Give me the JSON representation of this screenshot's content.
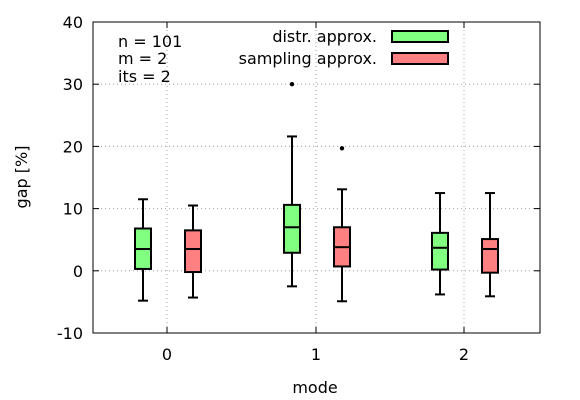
{
  "chart_data": {
    "type": "boxplot",
    "xlabel": "mode",
    "ylabel": "gap [%]",
    "ylim": [
      -10,
      40
    ],
    "yticks": [
      "-10",
      "0",
      "10",
      "20",
      "30",
      "40"
    ],
    "categories": [
      "0",
      "1",
      "2"
    ],
    "grid": true,
    "legend_position": "top-right",
    "annotations": [
      "n = 101",
      "m = 2",
      "its = 2"
    ],
    "series": [
      {
        "name": "distr. approx.",
        "color": "#80ff80",
        "boxes": [
          {
            "category": "0",
            "whisker_low": -4.8,
            "q1": 0.3,
            "median": 3.5,
            "q3": 6.8,
            "whisker_high": 11.5,
            "outliers": []
          },
          {
            "category": "1",
            "whisker_low": -2.5,
            "q1": 2.9,
            "median": 7.0,
            "q3": 10.6,
            "whisker_high": 21.6,
            "outliers": [
              30.0
            ]
          },
          {
            "category": "2",
            "whisker_low": -3.8,
            "q1": 0.2,
            "median": 3.7,
            "q3": 6.1,
            "whisker_high": 12.5,
            "outliers": []
          }
        ]
      },
      {
        "name": "sampling approx.",
        "color": "#ff8080",
        "boxes": [
          {
            "category": "0",
            "whisker_low": -4.3,
            "q1": -0.2,
            "median": 3.5,
            "q3": 6.5,
            "whisker_high": 10.5,
            "outliers": []
          },
          {
            "category": "1",
            "whisker_low": -4.9,
            "q1": 0.7,
            "median": 3.8,
            "q3": 7.0,
            "whisker_high": 13.1,
            "outliers": [
              19.7
            ]
          },
          {
            "category": "2",
            "whisker_low": -4.1,
            "q1": -0.3,
            "median": 3.5,
            "q3": 5.1,
            "whisker_high": 12.5,
            "outliers": []
          }
        ]
      }
    ]
  }
}
